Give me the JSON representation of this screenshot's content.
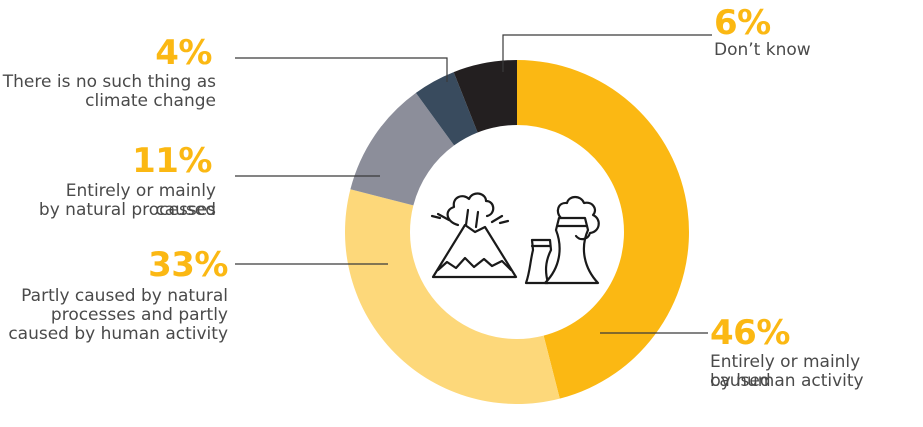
{
  "colors": {
    "accent": "#FBB813",
    "human": "#FBB813",
    "partly": "#FDD87A",
    "natural": "#8C8E9A",
    "no_change": "#394B5E",
    "dont_know": "#231F20",
    "leader": "#3a3a3a",
    "text": "#4a4a4a"
  },
  "icons": [
    "volcano-icon",
    "power-plant-icon"
  ],
  "chart_data": {
    "type": "pie",
    "donut": true,
    "start": "12 o'clock, clockwise",
    "categories": [
      "Entirely or mainly caused by human activity",
      "Partly caused by natural processes and partly caused by human activity",
      "Entirely or mainly caused by natural processes",
      "There is no such thing as climate change",
      "Don’t know"
    ],
    "values": [
      46,
      33,
      11,
      4,
      6
    ],
    "labels": [
      {
        "value": "46%",
        "lines": [
          "Entirely or mainly caused",
          "by human activity"
        ]
      },
      {
        "value": "33%",
        "lines": [
          "Partly caused by natural",
          "processes and partly",
          "caused by human activity"
        ]
      },
      {
        "value": "11%",
        "lines": [
          "Entirely or mainly caused",
          "by natural processes"
        ]
      },
      {
        "value": "4%",
        "lines": [
          "There is no such thing as",
          "climate change"
        ]
      },
      {
        "value": "6%",
        "lines": [
          "Don’t know"
        ]
      }
    ]
  }
}
